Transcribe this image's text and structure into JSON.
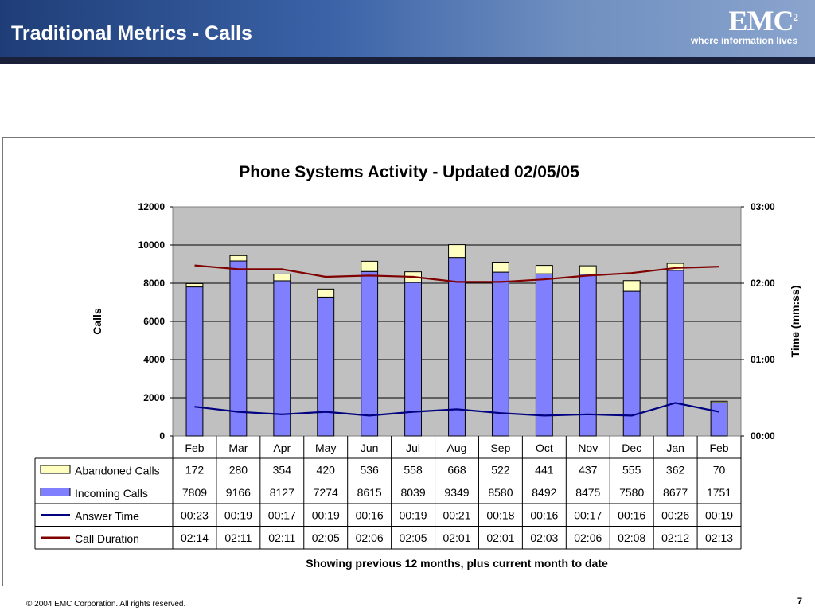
{
  "slide": {
    "title": "Traditional Metrics - Calls",
    "logo_mark": "EMC",
    "logo_sup": "2",
    "logo_tagline": "where information lives",
    "copyright": "© 2004 EMC Corporation. All rights reserved.",
    "page_number": "7"
  },
  "chart_data": {
    "type": "bar",
    "title": "Phone Systems Activity - Updated 02/05/05",
    "subtitle": "Showing previous 12 months, plus current month to date",
    "ylabel": "Calls",
    "y2label": "Time (mm:ss)",
    "ylim": [
      0,
      12000
    ],
    "yticks": [
      "12000",
      "10000",
      "8000",
      "6000",
      "4000",
      "2000",
      "0"
    ],
    "y2lim_seconds": [
      0,
      180
    ],
    "y2ticks": [
      "03:00",
      "02:00",
      "01:00",
      "00:00"
    ],
    "grid": true,
    "categories": [
      "Feb",
      "Mar",
      "Apr",
      "May",
      "Jun",
      "Jul",
      "Aug",
      "Sep",
      "Oct",
      "Nov",
      "Dec",
      "Jan",
      "Feb"
    ],
    "series": [
      {
        "name": "Abandoned Calls",
        "kind": "stacked-bar",
        "color": "#ffffc0",
        "values": [
          172,
          280,
          354,
          420,
          536,
          558,
          668,
          522,
          441,
          437,
          555,
          362,
          70
        ]
      },
      {
        "name": "Incoming Calls",
        "kind": "stacked-bar",
        "color": "#8080ff",
        "values": [
          7809,
          9166,
          8127,
          7274,
          8615,
          8039,
          9349,
          8580,
          8492,
          8475,
          7580,
          8677,
          1751
        ]
      },
      {
        "name": "Answer Time",
        "kind": "line",
        "axis": "y2",
        "color": "#000080",
        "values": [
          "00:23",
          "00:19",
          "00:17",
          "00:19",
          "00:16",
          "00:19",
          "00:21",
          "00:18",
          "00:16",
          "00:17",
          "00:16",
          "00:26",
          "00:19"
        ]
      },
      {
        "name": "Call Duration",
        "kind": "line",
        "axis": "y2",
        "color": "#800000",
        "values": [
          "02:14",
          "02:11",
          "02:11",
          "02:05",
          "02:06",
          "02:05",
          "02:01",
          "02:01",
          "02:03",
          "02:06",
          "02:08",
          "02:12",
          "02:13"
        ]
      }
    ],
    "colors": {
      "plot_bg": "#c0c0c0",
      "bar_outline": "#000000",
      "abandoned": "#ffffc0",
      "incoming": "#8080ff",
      "answer": "#000080",
      "duration": "#800000"
    }
  }
}
